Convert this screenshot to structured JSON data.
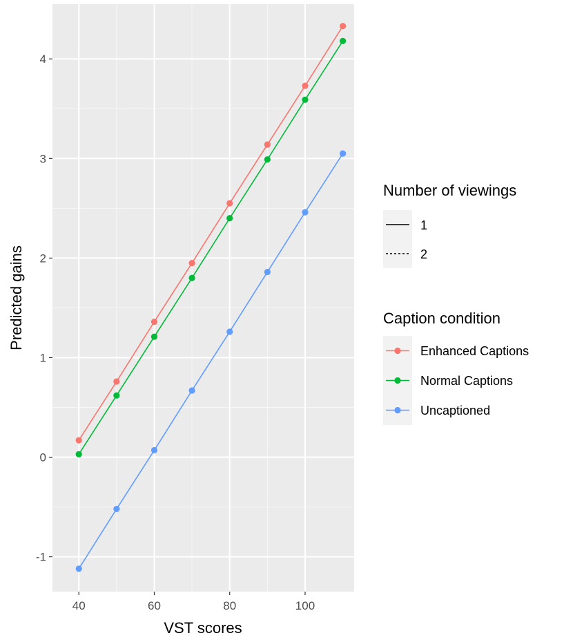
{
  "chart_data": {
    "type": "line",
    "xlabel": "VST scores",
    "ylabel": "Predicted gains",
    "xlim": [
      33,
      113
    ],
    "ylim": [
      -1.35,
      4.55
    ],
    "x_ticks": [
      40,
      60,
      80,
      100
    ],
    "x_tick_labels": [
      "40",
      "60",
      "80",
      "100"
    ],
    "y_ticks": [
      -1,
      0,
      1,
      2,
      3,
      4
    ],
    "y_tick_labels": [
      "-1",
      "0",
      "1",
      "2",
      "3",
      "4"
    ],
    "grid": true,
    "panel_background": "#ebebeb",
    "x": [
      40,
      50,
      60,
      70,
      80,
      90,
      100,
      110
    ],
    "series": [
      {
        "name": "Enhanced Captions",
        "color": "#f8766d",
        "viewings": "1",
        "values": [
          0.17,
          0.76,
          1.36,
          1.95,
          2.55,
          3.14,
          3.73,
          4.33
        ]
      },
      {
        "name": "Normal Captions",
        "color": "#00ba38",
        "viewings": "1",
        "values": [
          0.03,
          0.62,
          1.21,
          1.8,
          2.4,
          2.99,
          3.59,
          4.18
        ]
      },
      {
        "name": "Uncaptioned",
        "color": "#619cff",
        "viewings": "1",
        "values": [
          -1.12,
          -0.52,
          0.07,
          0.67,
          1.26,
          1.86,
          2.46,
          3.05
        ]
      }
    ],
    "legends": [
      {
        "title": "Number of viewings",
        "items": [
          {
            "label": "1",
            "linetype": "solid"
          },
          {
            "label": "2",
            "linetype": "dotted"
          }
        ]
      },
      {
        "title": "Caption condition",
        "items": [
          {
            "label": "Enhanced Captions"
          },
          {
            "label": "Normal Captions"
          },
          {
            "label": "Uncaptioned"
          }
        ]
      }
    ],
    "legend_position": "right"
  }
}
